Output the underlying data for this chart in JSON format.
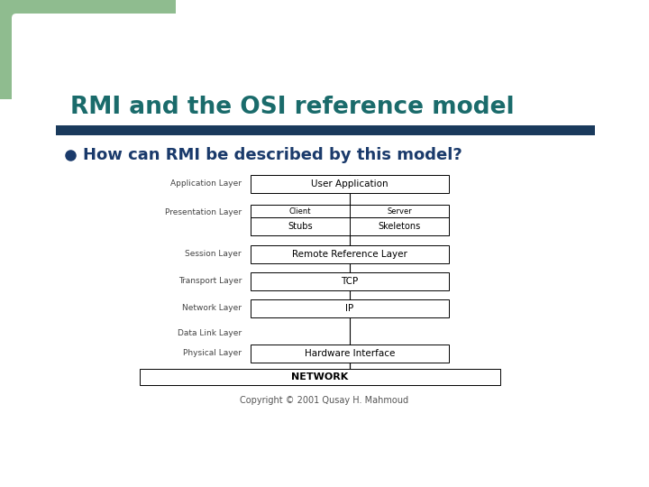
{
  "title": "RMI and the OSI reference model",
  "subtitle": "How can RMI be described by this model?",
  "title_color": "#1a6b6b",
  "subtitle_color": "#1a3a6b",
  "bg_color": "#ffffff",
  "header_bar_color": "#1a3a5c",
  "green_color": "#8fbc8f",
  "copyright": "Copyright © 2001 Qusay H. Mahmoud",
  "network_label": "NETWORK",
  "box_edge_color": "#000000",
  "box_face_color": "#ffffff",
  "text_color": "#000000",
  "layer_label_color": "#444444",
  "layers": [
    {
      "osi": "Application Layer",
      "type": "single",
      "label": "User Application"
    },
    {
      "osi": "Presentation Layer",
      "type": "split",
      "left": "Stubs",
      "right": "Skeletons",
      "left_header": "Client",
      "right_header": "Server"
    },
    {
      "osi": "Session Layer",
      "type": "single",
      "label": "Remote Reference Layer"
    },
    {
      "osi": "Transport Layer",
      "type": "single",
      "label": "TCP"
    },
    {
      "osi": "Network Layer",
      "type": "single",
      "label": "IP"
    },
    {
      "osi": "Data Link Layer",
      "type": "empty",
      "label": ""
    },
    {
      "osi": "Physical Layer",
      "type": "single",
      "label": "Hardware Interface"
    }
  ]
}
